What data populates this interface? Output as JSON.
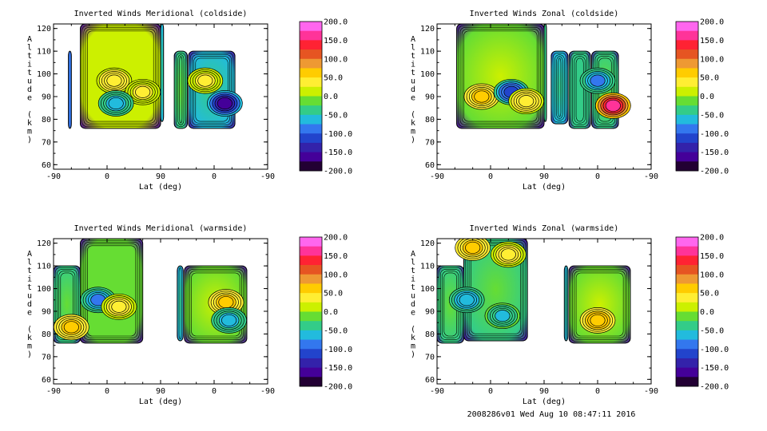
{
  "footer_text": "2008286v01 Wed Aug 10 08:47:11 2016",
  "colorbar": {
    "ticks": [
      200,
      150,
      100,
      50,
      0,
      -50,
      -100,
      -150,
      -200
    ],
    "tick_labels": [
      "200.0",
      "150.0",
      "100.0",
      "50.0",
      "0.0",
      "-50.0",
      "-100.0",
      "-150.0",
      "-200.0"
    ],
    "colors": [
      "#ff66ee",
      "#ff3399",
      "#ff2233",
      "#e65522",
      "#ee9933",
      "#ffcc00",
      "#ffee33",
      "#ccf000",
      "#66dd33",
      "#33cc88",
      "#22bbdd",
      "#3377ee",
      "#2244cc",
      "#3322aa",
      "#440099",
      "#220033"
    ]
  },
  "chart_data": [
    {
      "type": "heatmap",
      "title": "Inverted Winds Meridional (coldside)",
      "xlabel": "Lat (deg)",
      "ylabel": "Altitude (km)",
      "xtick_labels": [
        "-90",
        "0",
        "90",
        "0",
        "-90"
      ],
      "ytick_labels": [
        "60",
        "70",
        "80",
        "90",
        "100",
        "110",
        "120"
      ],
      "ylim": [
        58,
        122
      ],
      "value_range": [
        -200,
        200
      ],
      "grid": false,
      "blocks": [
        {
          "lat": [
            -65,
            -60
          ],
          "alt": [
            76,
            110
          ],
          "mean": -90
        },
        {
          "lat": [
            -45,
            90
          ],
          "alt": [
            76,
            122
          ],
          "mean": 10
        },
        {
          "lat": [
            90,
            95
          ],
          "alt": [
            79,
            122
          ],
          "mean": -50
        },
        {
          "lat": [
            113,
            135
          ],
          "alt": [
            76,
            110
          ],
          "mean": -20
        },
        {
          "lat": [
            137,
            215
          ],
          "alt": [
            76,
            110
          ],
          "mean": -60
        }
      ],
      "extrema": [
        {
          "lat": 12,
          "alt": 97,
          "value": 50
        },
        {
          "lat": 60,
          "alt": 92,
          "value": 30
        },
        {
          "lat": 15,
          "alt": 87,
          "value": -60
        },
        {
          "lat": 165,
          "alt": 97,
          "value": 30
        },
        {
          "lat": 198,
          "alt": 87,
          "value": -150
        }
      ]
    },
    {
      "type": "heatmap",
      "title": "Inverted Winds Zonal (coldside)",
      "xlabel": "Lat (deg)",
      "ylabel": "Altitude (km)",
      "xtick_labels": [
        "-90",
        "0",
        "90",
        "0",
        "-90"
      ],
      "ytick_labels": [
        "60",
        "70",
        "80",
        "90",
        "100",
        "110",
        "120"
      ],
      "ylim": [
        58,
        122
      ],
      "value_range": [
        -200,
        200
      ],
      "grid": false,
      "blocks": [
        {
          "lat": [
            -57,
            90
          ],
          "alt": [
            76,
            122
          ],
          "mean": -10
        },
        {
          "lat": [
            90,
            94
          ],
          "alt": [
            79,
            122
          ],
          "mean": -40
        },
        {
          "lat": [
            102,
            130
          ],
          "alt": [
            78,
            110
          ],
          "mean": -50
        },
        {
          "lat": [
            132,
            168
          ],
          "alt": [
            76,
            110
          ],
          "mean": -40
        },
        {
          "lat": [
            170,
            215
          ],
          "alt": [
            76,
            110
          ],
          "mean": -20
        }
      ],
      "extrema": [
        {
          "lat": -15,
          "alt": 90,
          "value": 60
        },
        {
          "lat": 35,
          "alt": 92,
          "value": -110
        },
        {
          "lat": 60,
          "alt": 88,
          "value": 50
        },
        {
          "lat": 180,
          "alt": 97,
          "value": -80
        },
        {
          "lat": 206,
          "alt": 86,
          "value": 160
        }
      ]
    },
    {
      "type": "heatmap",
      "title": "Inverted Winds Meridional (warmside)",
      "xlabel": "Lat (deg)",
      "ylabel": "Altitude (km)",
      "xtick_labels": [
        "-90",
        "0",
        "90",
        "0",
        "-90"
      ],
      "ytick_labels": [
        "60",
        "70",
        "80",
        "90",
        "100",
        "110",
        "120"
      ],
      "ylim": [
        58,
        122
      ],
      "value_range": [
        -200,
        200
      ],
      "grid": false,
      "blocks": [
        {
          "lat": [
            -90,
            -45
          ],
          "alt": [
            76,
            110
          ],
          "mean": -30
        },
        {
          "lat": [
            -45,
            60
          ],
          "alt": [
            76,
            122
          ],
          "mean": -15
        },
        {
          "lat": [
            118,
            128
          ],
          "alt": [
            77,
            110
          ],
          "mean": -60
        },
        {
          "lat": [
            130,
            235
          ],
          "alt": [
            76,
            110
          ],
          "mean": 0
        }
      ],
      "extrema": [
        {
          "lat": -60,
          "alt": 83,
          "value": 60
        },
        {
          "lat": -15,
          "alt": 95,
          "value": -80
        },
        {
          "lat": 20,
          "alt": 92,
          "value": 40
        },
        {
          "lat": 200,
          "alt": 94,
          "value": 60
        },
        {
          "lat": 205,
          "alt": 86,
          "value": -60
        }
      ]
    },
    {
      "type": "heatmap",
      "title": "Inverted Winds Zonal (warmside)",
      "xlabel": "Lat (deg)",
      "ylabel": "Altitude (km)",
      "xtick_labels": [
        "-90",
        "0",
        "90",
        "0",
        "-90"
      ],
      "ytick_labels": [
        "60",
        "70",
        "80",
        "90",
        "100",
        "110",
        "120"
      ],
      "ylim": [
        58,
        122
      ],
      "value_range": [
        -200,
        200
      ],
      "grid": false,
      "blocks": [
        {
          "lat": [
            -90,
            -45
          ],
          "alt": [
            76,
            110
          ],
          "mean": -30
        },
        {
          "lat": [
            -45,
            62
          ],
          "alt": [
            77,
            122
          ],
          "mean": -20
        },
        {
          "lat": [
            124,
            130
          ],
          "alt": [
            77,
            110
          ],
          "mean": -60
        },
        {
          "lat": [
            132,
            235
          ],
          "alt": [
            76,
            110
          ],
          "mean": -10
        }
      ],
      "extrema": [
        {
          "lat": -30,
          "alt": 118,
          "value": 60
        },
        {
          "lat": 30,
          "alt": 115,
          "value": 40
        },
        {
          "lat": -40,
          "alt": 95,
          "value": -70
        },
        {
          "lat": 20,
          "alt": 88,
          "value": -50
        },
        {
          "lat": 180,
          "alt": 86,
          "value": 70
        }
      ]
    }
  ]
}
